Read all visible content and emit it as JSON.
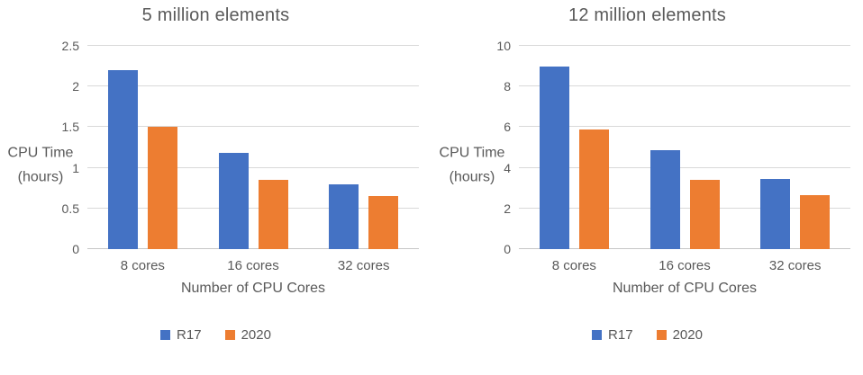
{
  "styles": {
    "background": "#FFFFFF",
    "text_color": "#595959",
    "gridline_color": "#D9D9D9",
    "baseline_color": "#C6C6C6",
    "series_blue": "#4472C4",
    "series_orange": "#ED7D31"
  },
  "chart_data": [
    {
      "type": "bar",
      "title": "5 million elements",
      "categories": [
        "8 cores",
        "16 cores",
        "32 cores"
      ],
      "series": [
        {
          "name": "R17",
          "color": "#4472C4",
          "values": [
            2.2,
            1.18,
            0.8
          ]
        },
        {
          "name": "2020",
          "color": "#ED7D31",
          "values": [
            1.5,
            0.85,
            0.65
          ]
        }
      ],
      "xlabel": "Number of CPU Cores",
      "ylabel": "CPU Time\n(hours)",
      "ylim": [
        0,
        2.5
      ],
      "yticks": [
        0,
        0.5,
        1,
        1.5,
        2,
        2.5
      ],
      "grid": true,
      "legend_position": "bottom"
    },
    {
      "type": "bar",
      "title": "12 million elements",
      "categories": [
        "8 cores",
        "16 cores",
        "32 cores"
      ],
      "series": [
        {
          "name": "R17",
          "color": "#4472C4",
          "values": [
            9.0,
            4.85,
            3.45
          ]
        },
        {
          "name": "2020",
          "color": "#ED7D31",
          "values": [
            5.9,
            3.4,
            2.65
          ]
        }
      ],
      "xlabel": "Number of CPU Cores",
      "ylabel": "CPU Time\n(hours)",
      "ylim": [
        0,
        10
      ],
      "yticks": [
        0,
        2,
        4,
        6,
        8,
        10
      ],
      "grid": true,
      "legend_position": "bottom"
    }
  ]
}
